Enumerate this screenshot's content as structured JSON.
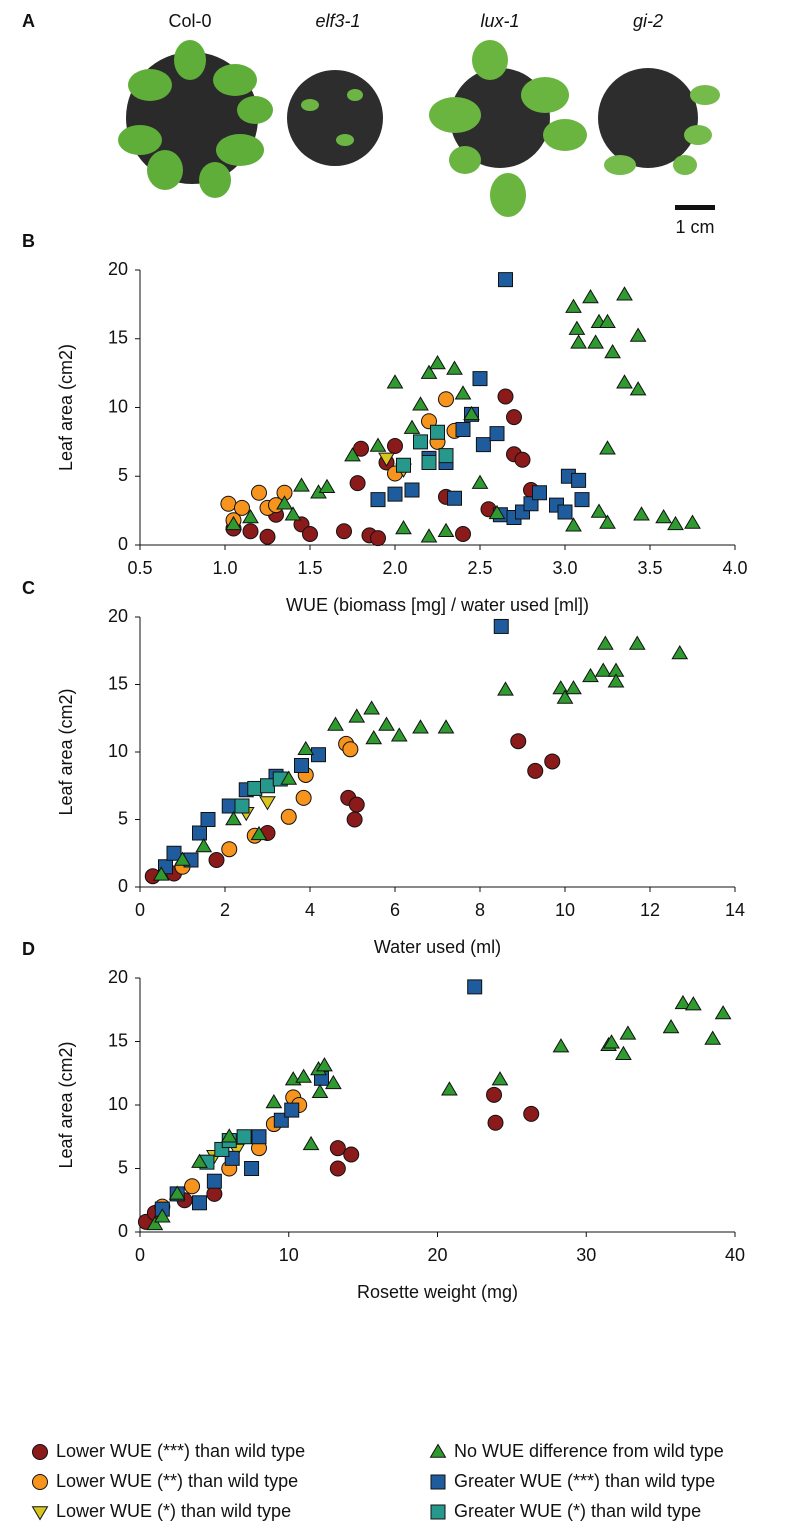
{
  "panel_a": {
    "label": "A",
    "genotypes": [
      "Col-0",
      "elf3-1",
      "lux-1",
      "gi-2"
    ],
    "scale_label": "1 cm"
  },
  "legend": [
    {
      "name": "Lower WUE (***) than wild type",
      "color": "#8b1a1a",
      "marker": "circle"
    },
    {
      "name": "Lower WUE (**) than wild type",
      "color": "#f7941d",
      "marker": "circle"
    },
    {
      "name": "Lower WUE (*) than wild type",
      "color": "#d8c51f",
      "marker": "triangle-down"
    },
    {
      "name": "No WUE difference from wild type",
      "color": "#2f9a2f",
      "marker": "triangle-up"
    },
    {
      "name": "Greater WUE (***) than wild type",
      "color": "#1f5c9e",
      "marker": "square"
    },
    {
      "name": "Greater WUE (*) than wild type",
      "color": "#27998c",
      "marker": "square"
    }
  ],
  "chart_data": [
    {
      "type": "scatter",
      "panel": "B",
      "xlabel": "WUE (biomass [mg] / water used [ml])",
      "ylabel": "Leaf area (cm2)",
      "xlim": [
        0.5,
        4.0
      ],
      "xticks": [
        0.5,
        {
          "value": 1,
          "label": "1.0"
        },
        1.5,
        {
          "value": 2,
          "label": "2.0"
        },
        2.5,
        {
          "value": 3,
          "label": "3.0"
        },
        3.5,
        {
          "value": 4,
          "label": "4.0"
        }
      ],
      "ylim": [
        0,
        20
      ],
      "yticks": [
        0,
        5,
        10,
        15,
        20
      ],
      "grid": false,
      "series": [
        {
          "x": [
            1.05,
            1.15,
            1.25,
            1.3,
            1.45,
            1.5,
            1.7,
            1.78,
            1.8,
            1.85,
            1.9,
            1.95,
            2.0,
            2.3,
            2.4,
            2.55,
            2.65,
            2.7,
            2.7,
            2.75,
            2.8
          ],
          "y": [
            1.2,
            1.0,
            0.6,
            2.2,
            1.5,
            0.8,
            1.0,
            4.5,
            7.0,
            0.7,
            0.5,
            6.0,
            7.2,
            3.5,
            0.8,
            2.6,
            10.8,
            9.3,
            6.6,
            6.2,
            4.0
          ]
        },
        {
          "x": [
            1.02,
            1.05,
            1.1,
            1.2,
            1.25,
            1.35,
            1.3,
            2.0,
            2.2,
            2.3,
            2.35,
            2.25
          ],
          "y": [
            3.0,
            1.8,
            2.7,
            3.8,
            2.7,
            3.8,
            2.9,
            5.2,
            9.0,
            10.6,
            8.3,
            7.5
          ]
        },
        {
          "x": [
            1.95,
            2.05
          ],
          "y": [
            6.3,
            5.5
          ]
        },
        {
          "x": [
            1.05,
            1.15,
            1.35,
            1.4,
            1.45,
            1.55,
            1.6,
            1.75,
            1.9,
            2.0,
            2.1,
            2.15,
            2.2,
            2.25,
            2.35,
            2.4,
            2.45,
            2.2,
            2.3,
            2.05,
            2.5,
            2.6,
            3.05,
            3.07,
            3.08,
            3.15,
            3.18,
            3.2,
            3.25,
            3.28,
            3.25,
            3.35,
            3.35,
            3.43,
            3.43,
            3.2,
            3.25,
            3.45,
            3.58,
            3.65,
            3.75,
            3.05
          ],
          "y": [
            1.5,
            2.0,
            3.0,
            2.2,
            4.3,
            3.8,
            4.2,
            6.5,
            7.2,
            11.8,
            8.5,
            10.2,
            12.5,
            13.2,
            12.8,
            11.0,
            9.5,
            0.6,
            1.0,
            1.2,
            4.5,
            2.3,
            17.3,
            15.7,
            14.7,
            18.0,
            14.7,
            16.2,
            16.2,
            14.0,
            7.0,
            18.2,
            11.8,
            11.3,
            15.2,
            2.4,
            1.6,
            2.2,
            2.0,
            1.5,
            1.6,
            1.4
          ]
        },
        {
          "x": [
            1.9,
            2.0,
            2.1,
            2.2,
            2.3,
            2.35,
            2.4,
            2.45,
            2.5,
            2.52,
            2.6,
            2.65,
            2.62,
            2.7,
            2.75,
            2.8,
            2.85,
            2.95,
            3.0,
            3.02,
            3.08,
            3.1
          ],
          "y": [
            3.3,
            3.7,
            4.0,
            6.3,
            6.0,
            3.4,
            8.4,
            9.5,
            12.1,
            7.3,
            8.1,
            19.3,
            2.2,
            2.0,
            2.4,
            3.0,
            3.8,
            2.9,
            2.4,
            5.0,
            4.7,
            3.3
          ]
        },
        {
          "x": [
            2.05,
            2.15,
            2.2,
            2.3,
            2.25
          ],
          "y": [
            5.8,
            7.5,
            6.0,
            6.5,
            8.2
          ]
        }
      ]
    },
    {
      "type": "scatter",
      "panel": "C",
      "xlabel": "Water used (ml)",
      "ylabel": "Leaf area (cm2)",
      "xlim": [
        0,
        14
      ],
      "xticks": [
        0,
        2,
        4,
        6,
        8,
        10,
        12,
        14
      ],
      "ylim": [
        0,
        20
      ],
      "yticks": [
        0,
        5,
        10,
        15,
        20
      ],
      "grid": false,
      "series": [
        {
          "x": [
            0.3,
            0.8,
            1.8,
            3.0,
            4.9,
            5.1,
            5.05,
            8.9,
            9.3,
            9.7
          ],
          "y": [
            0.8,
            1.0,
            2.0,
            4.0,
            6.6,
            6.1,
            5.0,
            10.8,
            8.6,
            9.3
          ]
        },
        {
          "x": [
            1.0,
            2.1,
            2.7,
            3.5,
            3.85,
            3.9,
            4.85,
            4.95
          ],
          "y": [
            1.5,
            2.8,
            3.8,
            5.2,
            6.6,
            8.3,
            10.6,
            10.2
          ]
        },
        {
          "x": [
            2.5,
            3.0
          ],
          "y": [
            5.5,
            6.3
          ]
        },
        {
          "x": [
            0.5,
            1.0,
            1.5,
            2.2,
            2.8,
            3.5,
            3.9,
            4.6,
            5.1,
            5.45,
            5.5,
            5.8,
            6.1,
            6.6,
            7.2,
            8.6,
            9.9,
            10.0,
            10.2,
            10.6,
            10.95,
            10.9,
            11.2,
            11.2,
            11.7,
            12.7
          ],
          "y": [
            0.9,
            2.0,
            3.0,
            5.0,
            3.9,
            8.0,
            10.2,
            12.0,
            12.6,
            13.2,
            11.0,
            12.0,
            11.2,
            11.8,
            11.8,
            14.6,
            14.7,
            14.0,
            14.7,
            15.6,
            18.0,
            16.0,
            16.0,
            15.2,
            18.0,
            17.3
          ]
        },
        {
          "x": [
            0.6,
            0.8,
            1.2,
            1.4,
            1.6,
            2.1,
            2.5,
            3.2,
            3.8,
            4.2,
            8.5
          ],
          "y": [
            1.5,
            2.5,
            2.0,
            4.0,
            5.0,
            6.0,
            7.2,
            8.2,
            9.0,
            9.8,
            19.3
          ]
        },
        {
          "x": [
            2.4,
            2.7,
            3.0,
            3.3
          ],
          "y": [
            6.0,
            7.3,
            7.5,
            8.0
          ]
        }
      ]
    },
    {
      "type": "scatter",
      "panel": "D",
      "xlabel": "Rosette weight (mg)",
      "ylabel": "Leaf area (cm2)",
      "xlim": [
        0,
        40
      ],
      "xticks": [
        0,
        10,
        20,
        30,
        40
      ],
      "ylim": [
        0,
        20
      ],
      "yticks": [
        0,
        5,
        10,
        15,
        20
      ],
      "grid": false,
      "series": [
        {
          "x": [
            0.4,
            1,
            3,
            5,
            13.3,
            14.2,
            13.3,
            23.8,
            23.9,
            26.3
          ],
          "y": [
            0.8,
            1.5,
            2.5,
            3.0,
            6.6,
            6.1,
            5.0,
            10.8,
            8.6,
            9.3
          ]
        },
        {
          "x": [
            1.5,
            3.5,
            6,
            8,
            10.3,
            10.7,
            9
          ],
          "y": [
            2.0,
            3.6,
            5.0,
            6.6,
            10.6,
            10.0,
            8.5
          ]
        },
        {
          "x": [
            5,
            6.5
          ],
          "y": [
            6.0,
            6.5
          ]
        },
        {
          "x": [
            1,
            1.5,
            2.5,
            4,
            6,
            9,
            10.3,
            11,
            11.5,
            12,
            12.4,
            12.1,
            13,
            20.8,
            24.2,
            28.3,
            31.5,
            31.7,
            32.5,
            32.8,
            35.7,
            36.5,
            37.2,
            38.5,
            39.2
          ],
          "y": [
            0.6,
            1.2,
            3.0,
            5.5,
            7.5,
            10.2,
            12.0,
            12.2,
            6.9,
            12.8,
            13.1,
            11.0,
            11.7,
            11.2,
            12.0,
            14.6,
            14.7,
            14.9,
            14.0,
            15.6,
            16.1,
            18.0,
            17.9,
            15.2,
            17.2
          ]
        },
        {
          "x": [
            1.5,
            2.5,
            4,
            5,
            6.2,
            7.5,
            8,
            9.5,
            10.2,
            12.2,
            22.5
          ],
          "y": [
            1.8,
            3.0,
            2.3,
            4.0,
            5.8,
            5.0,
            7.5,
            8.8,
            9.6,
            12.1,
            19.3
          ]
        },
        {
          "x": [
            4.5,
            5.5,
            6,
            7
          ],
          "y": [
            5.5,
            6.5,
            7.2,
            7.5
          ]
        }
      ]
    }
  ]
}
